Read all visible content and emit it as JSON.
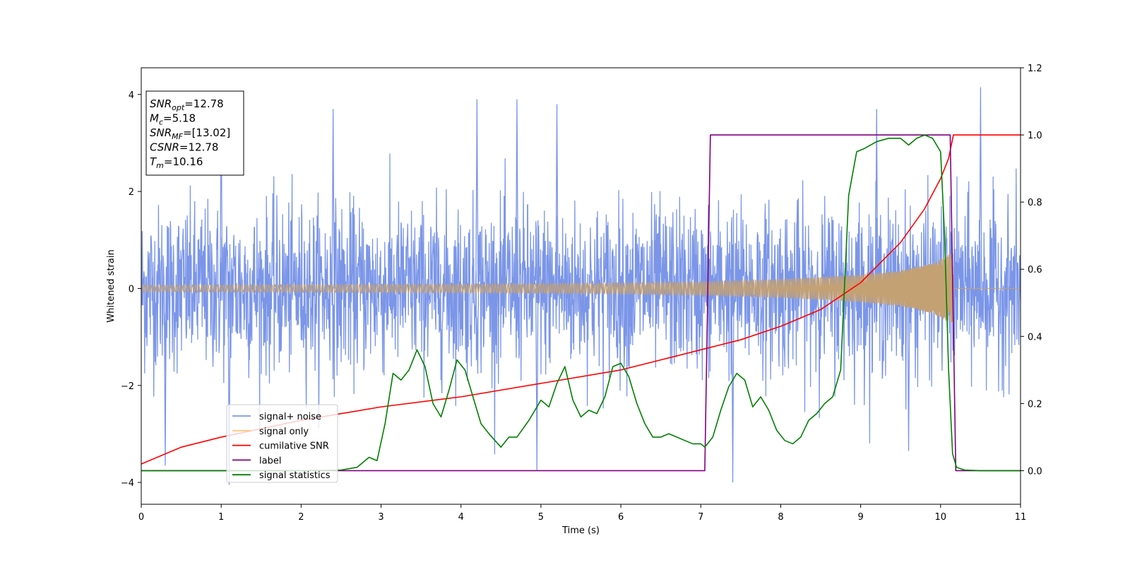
{
  "chart_data": {
    "type": "line",
    "xlabel": "Time (s)",
    "ylabel": "Whitened strain",
    "ylabel_right": "",
    "xlim": [
      0,
      11
    ],
    "ylim_left": [
      -4.45,
      4.55
    ],
    "ylim_right": [
      -0.1,
      1.2
    ],
    "xticks": [
      0,
      1,
      2,
      3,
      4,
      5,
      6,
      7,
      8,
      9,
      10,
      11
    ],
    "yticks_left": [
      -4,
      -2,
      0,
      2,
      4
    ],
    "yticks_right": [
      0.0,
      0.2,
      0.4,
      0.6,
      0.8,
      1.0,
      1.2
    ],
    "yticks_right_labels": [
      "0.0",
      "0.2",
      "0.4",
      "0.6",
      "0.8",
      "1.0",
      "1.2"
    ],
    "grid": false,
    "legend_placement": "lower-left",
    "annotation": {
      "lines": [
        {
          "sym": "SNR",
          "sub": "opt",
          "eq": "=12.78"
        },
        {
          "sym": "M",
          "sub": "c",
          "eq": "=5.18"
        },
        {
          "sym": "SNR",
          "sub": "MF",
          "eq": "=[13.02]"
        },
        {
          "sym": "CSNR",
          "sub": "",
          "eq": "=12.78"
        },
        {
          "sym": "T",
          "sub": "m",
          "eq": "=10.16"
        }
      ]
    },
    "series": [
      {
        "name": "signal+ noise",
        "axis": "left",
        "color": "#7b96e8",
        "kind": "noise",
        "noise_std": 0.85,
        "extreme_peaks": [
          [
            1.0,
            3.8
          ],
          [
            2.4,
            3.7
          ],
          [
            4.2,
            3.9
          ],
          [
            4.7,
            3.9
          ],
          [
            5.2,
            3.8
          ],
          [
            9.2,
            3.7
          ],
          [
            10.5,
            4.15
          ],
          [
            0.3,
            -3.65
          ],
          [
            1.1,
            -4.05
          ],
          [
            4.95,
            -3.75
          ],
          [
            7.4,
            -4.0
          ],
          [
            9.6,
            -3.35
          ]
        ]
      },
      {
        "name": "signal only",
        "axis": "left",
        "color": "#c4a173",
        "kind": "chirp",
        "envelope": [
          [
            0,
            0.07
          ],
          [
            2,
            0.08
          ],
          [
            4,
            0.09
          ],
          [
            6,
            0.11
          ],
          [
            7,
            0.14
          ],
          [
            8,
            0.19
          ],
          [
            9,
            0.28
          ],
          [
            9.5,
            0.37
          ],
          [
            9.9,
            0.52
          ],
          [
            10.16,
            0.75
          ]
        ],
        "merger_time": 10.16
      },
      {
        "name": "cumilative SNR",
        "axis": "right",
        "color": "#ff0000",
        "x": [
          0,
          0.5,
          1,
          2,
          3,
          4,
          5,
          6,
          7,
          7.5,
          8,
          8.5,
          9,
          9.5,
          9.8,
          10.0,
          10.1,
          10.16,
          11
        ],
        "y": [
          0.02,
          0.07,
          0.1,
          0.15,
          0.19,
          0.22,
          0.26,
          0.3,
          0.36,
          0.39,
          0.43,
          0.48,
          0.56,
          0.68,
          0.78,
          0.87,
          0.93,
          1.0,
          1.0
        ]
      },
      {
        "name": "label",
        "axis": "right",
        "color": "#800080",
        "x": [
          0,
          7.05,
          7.12,
          10.12,
          10.19,
          11
        ],
        "y": [
          0.0,
          0.0,
          1.0,
          1.0,
          0.0,
          0.0
        ]
      },
      {
        "name": "signal statistics",
        "axis": "right",
        "color": "#008000",
        "x": [
          0,
          2.0,
          2.5,
          2.7,
          2.85,
          2.95,
          3.05,
          3.15,
          3.25,
          3.35,
          3.45,
          3.55,
          3.65,
          3.75,
          3.85,
          3.95,
          4.05,
          4.15,
          4.25,
          4.35,
          4.5,
          4.6,
          4.7,
          4.85,
          5.0,
          5.1,
          5.2,
          5.3,
          5.4,
          5.5,
          5.6,
          5.7,
          5.8,
          5.9,
          6.0,
          6.1,
          6.2,
          6.3,
          6.4,
          6.5,
          6.6,
          6.7,
          6.8,
          6.9,
          7.0,
          7.05,
          7.15,
          7.25,
          7.35,
          7.45,
          7.55,
          7.65,
          7.75,
          7.85,
          7.95,
          8.05,
          8.15,
          8.25,
          8.35,
          8.45,
          8.55,
          8.65,
          8.75,
          8.85,
          8.95,
          9.05,
          9.2,
          9.35,
          9.5,
          9.6,
          9.7,
          9.8,
          9.9,
          10.0,
          10.05,
          10.1,
          10.15,
          10.2,
          10.3,
          10.5,
          11
        ],
        "y": [
          0.0,
          0.0,
          0.002,
          0.01,
          0.04,
          0.03,
          0.14,
          0.29,
          0.27,
          0.3,
          0.36,
          0.31,
          0.2,
          0.16,
          0.24,
          0.33,
          0.3,
          0.22,
          0.14,
          0.11,
          0.07,
          0.1,
          0.1,
          0.15,
          0.21,
          0.19,
          0.26,
          0.31,
          0.21,
          0.16,
          0.18,
          0.17,
          0.22,
          0.31,
          0.32,
          0.28,
          0.2,
          0.14,
          0.1,
          0.1,
          0.11,
          0.1,
          0.09,
          0.08,
          0.08,
          0.07,
          0.1,
          0.18,
          0.25,
          0.29,
          0.27,
          0.19,
          0.22,
          0.18,
          0.12,
          0.09,
          0.08,
          0.1,
          0.15,
          0.17,
          0.2,
          0.22,
          0.3,
          0.82,
          0.95,
          0.96,
          0.98,
          0.99,
          0.99,
          0.97,
          0.99,
          1.0,
          0.99,
          0.95,
          0.7,
          0.3,
          0.05,
          0.01,
          0.002,
          0.0,
          0.0
        ]
      }
    ]
  }
}
